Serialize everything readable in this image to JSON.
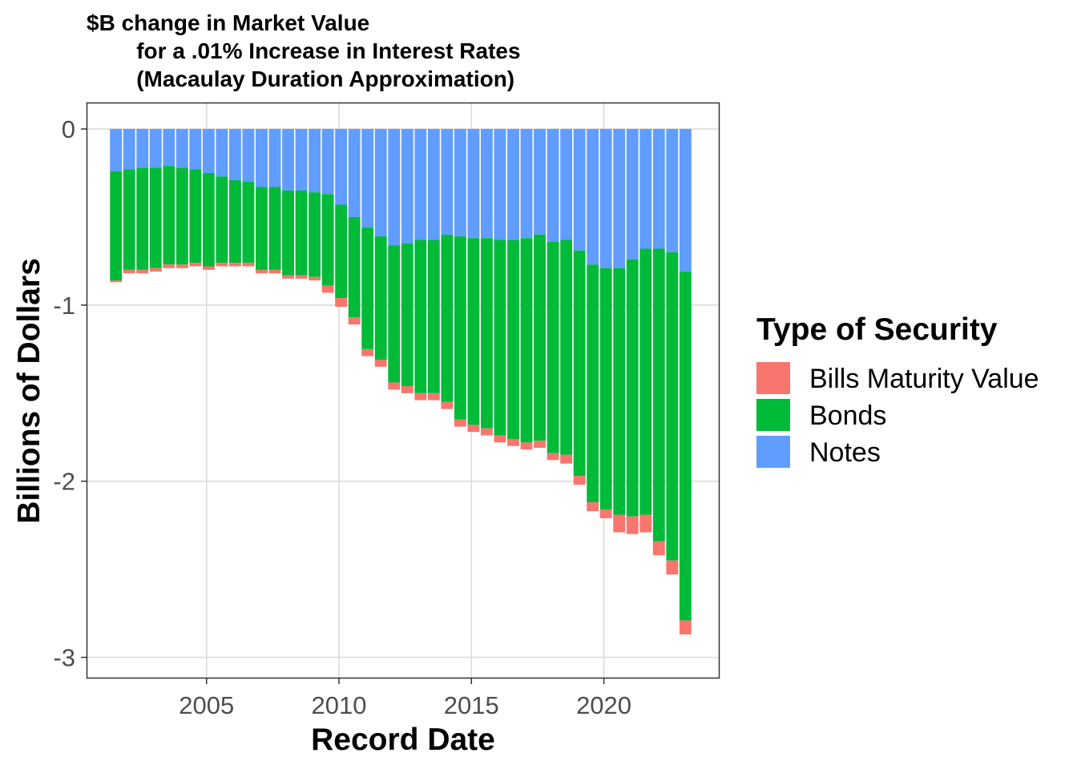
{
  "chart_data": {
    "type": "bar",
    "stacked": true,
    "title": "$B change in Market Value\n        for a .01% Increase in Interest Rates\n        (Macaulay Duration Approximation)",
    "xlabel": "Record Date",
    "ylabel": "Billions of Dollars",
    "xlim": [
      2000.47,
      2024.37
    ],
    "ylim": [
      -3.12,
      0.15
    ],
    "x_ticks": [
      2005,
      2010,
      2015,
      2020
    ],
    "x_tick_labels": [
      "2005",
      "2010",
      "2015",
      "2020"
    ],
    "y_ticks": [
      0,
      -1,
      -2,
      -3
    ],
    "y_tick_labels": [
      "0",
      "-1",
      "-2",
      "-3"
    ],
    "grid": true,
    "legend": {
      "title": "Type of Security",
      "position": "right"
    },
    "colors": {
      "Bills Maturity Value": "#F8766D",
      "Bonds": "#00BA38",
      "Notes": "#619CFF"
    },
    "x": [
      2001.58,
      2002.08,
      2002.58,
      2003.08,
      2003.58,
      2004.08,
      2004.58,
      2005.08,
      2005.58,
      2006.08,
      2006.58,
      2007.08,
      2007.58,
      2008.08,
      2008.58,
      2009.08,
      2009.58,
      2010.08,
      2010.58,
      2011.08,
      2011.58,
      2012.08,
      2012.58,
      2013.08,
      2013.58,
      2014.08,
      2014.58,
      2015.08,
      2015.58,
      2016.08,
      2016.58,
      2017.08,
      2017.58,
      2018.08,
      2018.58,
      2019.08,
      2019.58,
      2020.08,
      2020.58,
      2021.08,
      2021.58,
      2022.08,
      2022.58,
      2023.08
    ],
    "series": [
      {
        "name": "Notes",
        "values": [
          -0.24,
          -0.23,
          -0.22,
          -0.22,
          -0.21,
          -0.22,
          -0.23,
          -0.25,
          -0.27,
          -0.29,
          -0.3,
          -0.33,
          -0.33,
          -0.35,
          -0.35,
          -0.36,
          -0.37,
          -0.43,
          -0.5,
          -0.56,
          -0.61,
          -0.66,
          -0.65,
          -0.63,
          -0.63,
          -0.6,
          -0.61,
          -0.62,
          -0.62,
          -0.63,
          -0.63,
          -0.62,
          -0.6,
          -0.64,
          -0.63,
          -0.69,
          -0.77,
          -0.79,
          -0.79,
          -0.74,
          -0.68,
          -0.68,
          -0.7,
          -0.81
        ]
      },
      {
        "name": "Bonds",
        "values": [
          -0.62,
          -0.57,
          -0.58,
          -0.57,
          -0.56,
          -0.55,
          -0.53,
          -0.53,
          -0.49,
          -0.47,
          -0.46,
          -0.47,
          -0.47,
          -0.48,
          -0.48,
          -0.48,
          -0.52,
          -0.53,
          -0.57,
          -0.69,
          -0.7,
          -0.78,
          -0.81,
          -0.87,
          -0.87,
          -0.95,
          -1.04,
          -1.06,
          -1.08,
          -1.11,
          -1.13,
          -1.16,
          -1.17,
          -1.2,
          -1.22,
          -1.28,
          -1.35,
          -1.37,
          -1.4,
          -1.46,
          -1.51,
          -1.66,
          -1.75,
          -1.98
        ]
      },
      {
        "name": "Bills Maturity Value",
        "values": [
          -0.01,
          -0.02,
          -0.02,
          -0.02,
          -0.02,
          -0.02,
          -0.02,
          -0.02,
          -0.02,
          -0.02,
          -0.02,
          -0.02,
          -0.02,
          -0.02,
          -0.02,
          -0.02,
          -0.04,
          -0.05,
          -0.04,
          -0.04,
          -0.04,
          -0.04,
          -0.04,
          -0.04,
          -0.04,
          -0.04,
          -0.04,
          -0.04,
          -0.04,
          -0.04,
          -0.04,
          -0.04,
          -0.04,
          -0.04,
          -0.05,
          -0.05,
          -0.05,
          -0.05,
          -0.1,
          -0.1,
          -0.1,
          -0.08,
          -0.08,
          -0.08
        ]
      }
    ]
  }
}
